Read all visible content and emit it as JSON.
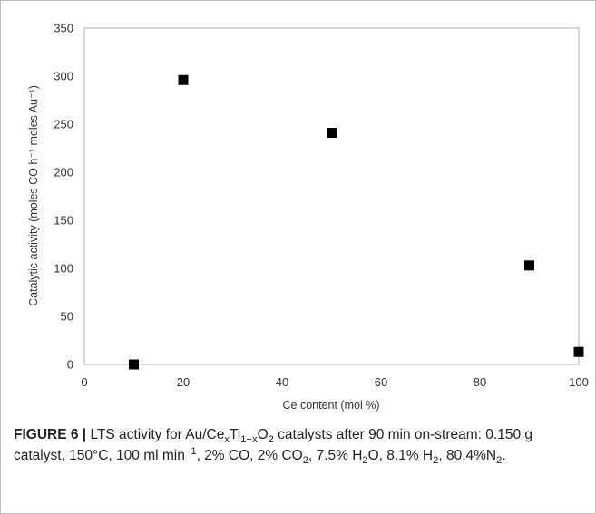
{
  "chart_data": {
    "type": "scatter",
    "title": "",
    "xlabel": "Ce content (mol %)",
    "ylabel": "Catalytic activity (moles CO h⁻¹ moles Au⁻¹)",
    "xlim": [
      0,
      100
    ],
    "ylim": [
      0,
      350
    ],
    "xticks": [
      0,
      20,
      40,
      60,
      80,
      100
    ],
    "yticks": [
      0,
      50,
      100,
      150,
      200,
      250,
      300,
      350
    ],
    "grid": false,
    "legend": "none",
    "marker": "square",
    "marker_color": "#000000",
    "series": [
      {
        "x": [
          10,
          20,
          50,
          90,
          100
        ],
        "y": [
          0,
          296,
          241,
          103,
          13
        ]
      }
    ]
  },
  "caption": {
    "label": "FIGURE 6 |",
    "t1": " LTS activity for Au/Ce",
    "s1": "x",
    "t2": "Ti",
    "s2": "1−x",
    "t3": "O",
    "s3": "2",
    "t4": " catalysts after 90 min on-stream: 0.150 g catalyst, 150°C, 100 ml min",
    "p1": "−1",
    "t5": ", 2% CO, 2% CO",
    "s4": "2",
    "t6": ", 7.5% H",
    "s5": "2",
    "t7": "O, 8.1% H",
    "s6": "2",
    "t8": ", 80.4%N",
    "s7": "2",
    "t9": "."
  }
}
